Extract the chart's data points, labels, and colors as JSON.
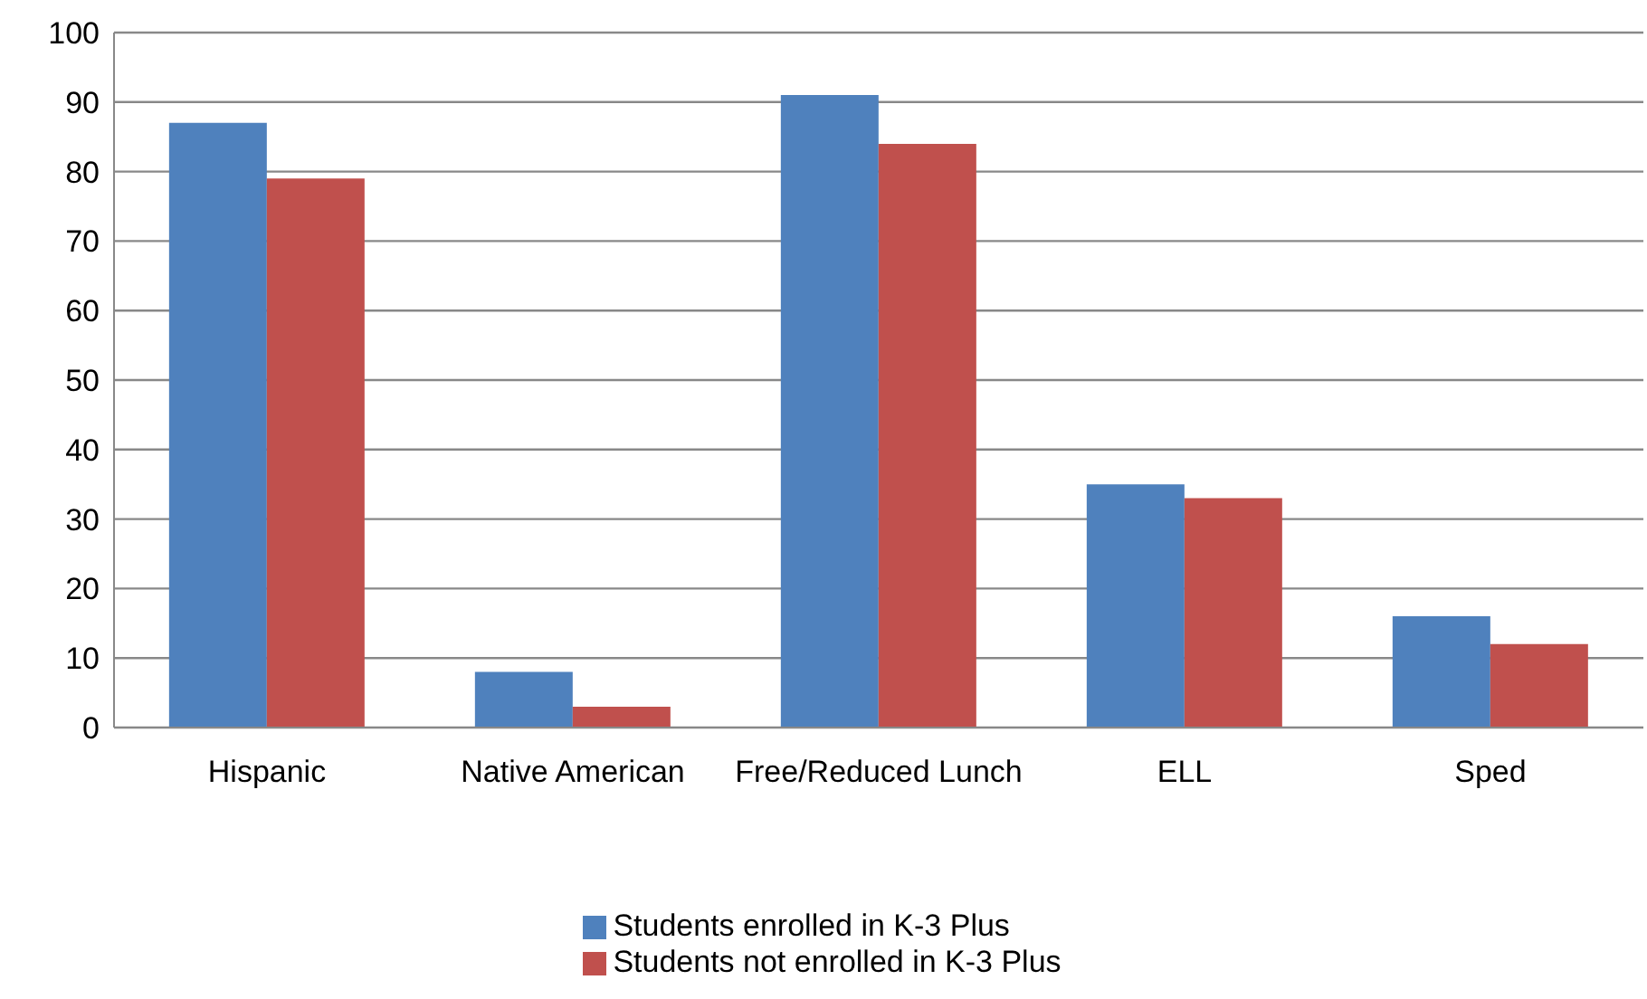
{
  "chart_data": {
    "type": "bar",
    "categories": [
      "Hispanic",
      "Native American",
      "Free/Reduced Lunch",
      "ELL",
      "Sped"
    ],
    "series": [
      {
        "name": "Students enrolled in K-3 Plus",
        "color": "#4f81bd",
        "values": [
          87,
          8,
          91,
          35,
          16
        ]
      },
      {
        "name": "Students not enrolled in K-3 Plus",
        "color": "#c0504d",
        "values": [
          79,
          3,
          84,
          33,
          12
        ]
      }
    ],
    "ylim": [
      0,
      100
    ],
    "yticks": [
      0,
      10,
      20,
      30,
      40,
      50,
      60,
      70,
      80,
      90,
      100
    ],
    "grid": "y",
    "legend": "bottom"
  }
}
